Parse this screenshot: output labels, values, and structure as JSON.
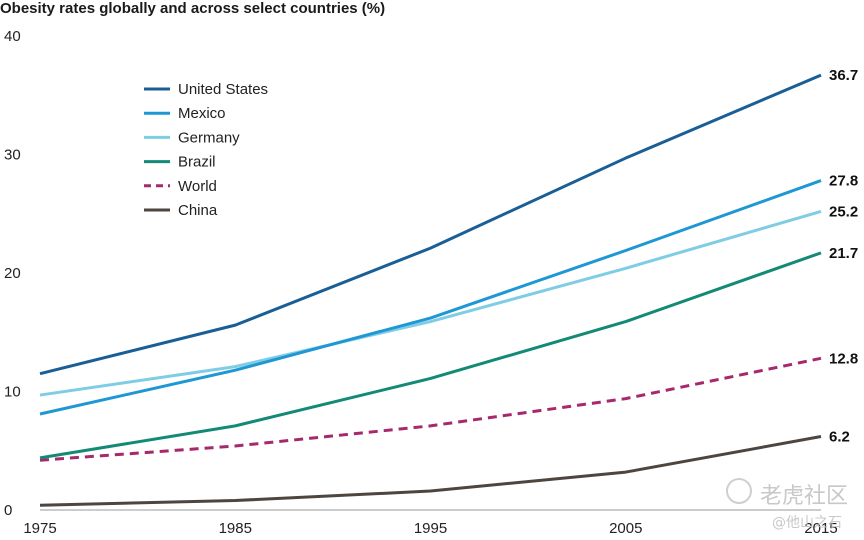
{
  "chart_data": {
    "type": "line",
    "title": "Obesity rates globally and across select countries (%)",
    "x": [
      1975,
      1985,
      1995,
      2005,
      2015
    ],
    "ylim": [
      0,
      40
    ],
    "yticks": [
      0,
      10,
      20,
      30,
      40
    ],
    "grid": false,
    "legend_position": "top-left",
    "series": [
      {
        "name": "United States",
        "color": "#1a5e96",
        "dashed": false,
        "values": [
          11.5,
          15.6,
          22.1,
          29.7,
          36.7
        ],
        "end_label": "36.7"
      },
      {
        "name": "Mexico",
        "color": "#1f97d4",
        "dashed": false,
        "values": [
          8.1,
          11.8,
          16.2,
          21.9,
          27.8
        ],
        "end_label": "27.8"
      },
      {
        "name": "Germany",
        "color": "#7ecde4",
        "dashed": false,
        "values": [
          9.7,
          12.1,
          15.9,
          20.4,
          25.2
        ],
        "end_label": "25.2"
      },
      {
        "name": "Brazil",
        "color": "#138a76",
        "dashed": false,
        "values": [
          4.4,
          7.1,
          11.1,
          15.9,
          21.7
        ],
        "end_label": "21.7"
      },
      {
        "name": "World",
        "color": "#a6296c",
        "dashed": true,
        "values": [
          4.2,
          5.4,
          7.1,
          9.4,
          12.8
        ],
        "end_label": "12.8"
      },
      {
        "name": "China",
        "color": "#4d4540",
        "dashed": false,
        "values": [
          0.4,
          0.8,
          1.6,
          3.2,
          6.2
        ],
        "end_label": "6.2"
      }
    ]
  },
  "watermark": {
    "brand": "老虎社区",
    "handle": "@他山之石"
  }
}
